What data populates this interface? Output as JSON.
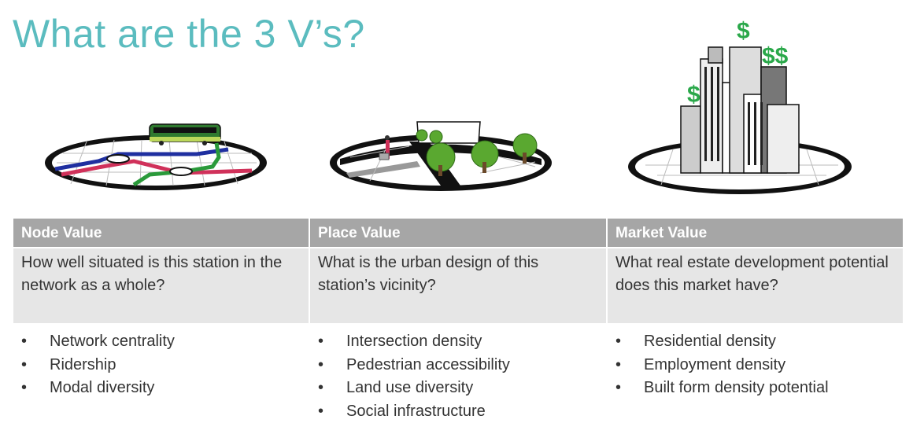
{
  "title": "What are the 3 V’s?",
  "columns": [
    {
      "header": "Node Value",
      "question": "How well situated is this station in the network as a whole?",
      "bullets": [
        "Network centrality",
        "Ridership",
        "Modal diversity"
      ]
    },
    {
      "header": "Place Value",
      "question": "What is the urban design of this station’s vicinity?",
      "bullets": [
        "Intersection density",
        "Pedestrian accessibility",
        "Land use diversity",
        "Social infrastructure"
      ]
    },
    {
      "header": "Market Value",
      "question": "What real estate development potential does this market have?",
      "bullets": [
        "Residential density",
        "Employment density",
        "Built form density potential"
      ]
    }
  ],
  "illustrations": {
    "node": "transit-network-train-icon",
    "place": "street-trees-pedestrian-icon",
    "market": "skyscrapers-dollar-icon",
    "dollar_signs": [
      "$",
      "$$",
      "$"
    ]
  },
  "colors": {
    "title": "#5bbcbf",
    "header_bg": "#a6a6a6",
    "question_bg": "#e6e6e6",
    "dollar": "#2aa84a",
    "route_blue": "#1f2fa0",
    "route_red": "#d0315a",
    "route_green": "#2a9a3a"
  }
}
